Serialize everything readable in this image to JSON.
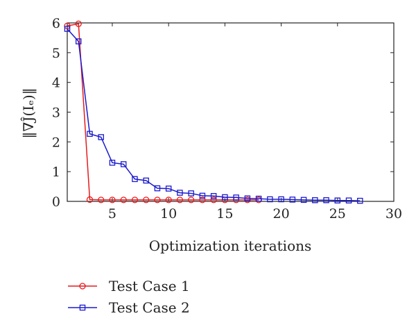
{
  "chart_data": {
    "type": "line",
    "title": "",
    "xlabel": "Optimization iterations",
    "ylabel": "‖∇Ĵ(Iₑ)‖",
    "xlim": [
      1,
      30
    ],
    "ylim": [
      0,
      6
    ],
    "xticks": [
      5,
      10,
      15,
      20,
      25,
      30
    ],
    "yticks": [
      0,
      1,
      2,
      3,
      4,
      5,
      6
    ],
    "grid": false,
    "legend_placement": "below",
    "series": [
      {
        "name": "Test Case 1",
        "color": "#e41a1c",
        "marker": "circle",
        "x": [
          1,
          2,
          3,
          4,
          5,
          6,
          7,
          8,
          9,
          10,
          11,
          12,
          13,
          14,
          15,
          16,
          17,
          18
        ],
        "y": [
          5.9,
          5.97,
          0.06,
          0.05,
          0.05,
          0.05,
          0.05,
          0.05,
          0.05,
          0.05,
          0.05,
          0.05,
          0.05,
          0.05,
          0.05,
          0.05,
          0.05,
          0.05
        ]
      },
      {
        "name": "Test Case 2",
        "color": "#1a1acd",
        "marker": "square",
        "x": [
          1,
          2,
          3,
          4,
          5,
          6,
          7,
          8,
          9,
          10,
          11,
          12,
          13,
          14,
          15,
          16,
          17,
          18,
          19,
          20,
          21,
          22,
          23,
          24,
          25,
          26,
          27
        ],
        "y": [
          5.8,
          5.38,
          2.27,
          2.16,
          1.3,
          1.25,
          0.75,
          0.7,
          0.44,
          0.43,
          0.29,
          0.27,
          0.19,
          0.18,
          0.14,
          0.13,
          0.1,
          0.09,
          0.07,
          0.07,
          0.06,
          0.05,
          0.04,
          0.04,
          0.03,
          0.03,
          0.02
        ]
      }
    ]
  }
}
